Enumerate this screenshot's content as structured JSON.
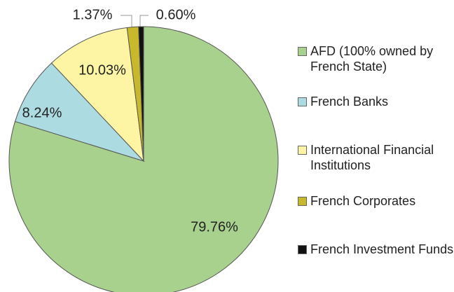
{
  "chart_data": {
    "type": "pie",
    "series": [
      {
        "name": "AFD (100% owned by French State)",
        "color": "#a9d18e"
      },
      {
        "name": "French Banks",
        "color": "#acdbe2"
      },
      {
        "name": "International Financial Institutions",
        "color": "#fdf5a3"
      },
      {
        "name": "French Corporates",
        "color": "#c8b92c"
      },
      {
        "name": "French Investment Funds",
        "color": "#111111"
      }
    ],
    "values": [
      79.76,
      8.24,
      10.03,
      1.37,
      0.6
    ],
    "value_labels": [
      "79.76%",
      "8.24%",
      "10.03%",
      "1.37%",
      "0.60%"
    ]
  }
}
